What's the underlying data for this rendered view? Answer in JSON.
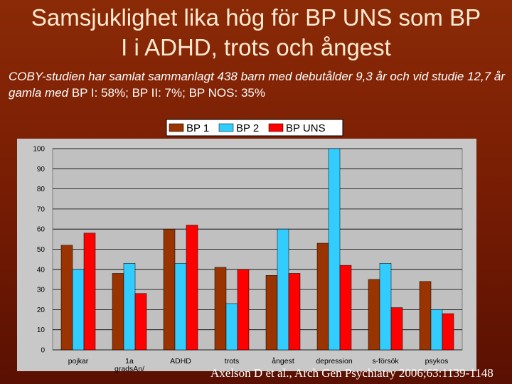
{
  "slide": {
    "title_line1": "Samsjuklighet lika hög för BP UNS som BP",
    "title_line2": "I i ADHD, trots och ångest",
    "subtitle_italic": "COBY-studien har samlat sammanlagt 438 barn med debutålder 9,3 år och vid studie 12,7 år gamla med ",
    "subtitle_rest": "BP I: 58%; BP II: 7%; BP NOS: 35%",
    "citation": "Axelson D et al., Arch Gen Psychiatry 2006;63:1139-1148"
  },
  "chart_data": {
    "type": "bar",
    "categories": [
      "pojkar",
      "1a gradsAnh",
      "ADHD",
      "trots",
      "ångest",
      "depression",
      "s-försök",
      "psykos"
    ],
    "category_labels_lines": [
      [
        "pojkar"
      ],
      [
        "1a",
        "gradsAn/"
      ],
      [
        "ADHD"
      ],
      [
        "trots"
      ],
      [
        "ångest"
      ],
      [
        "depression"
      ],
      [
        "s-försök"
      ],
      [
        "psykos"
      ]
    ],
    "series": [
      {
        "name": "BP 1",
        "color": "#993300",
        "values": [
          52,
          38,
          60,
          41,
          37,
          53,
          35,
          34
        ]
      },
      {
        "name": "BP 2",
        "color": "#33ccff",
        "values": [
          40,
          43,
          43,
          23,
          60,
          100,
          43,
          20
        ]
      },
      {
        "name": "BP UNS",
        "color": "#ff0000",
        "values": [
          58,
          28,
          62,
          40,
          38,
          42,
          21,
          18
        ]
      }
    ],
    "ylim": [
      0,
      100
    ],
    "yticks": [
      0,
      10,
      20,
      30,
      40,
      50,
      60,
      70,
      80,
      90,
      100
    ],
    "grid": true,
    "legend": "top-center"
  }
}
